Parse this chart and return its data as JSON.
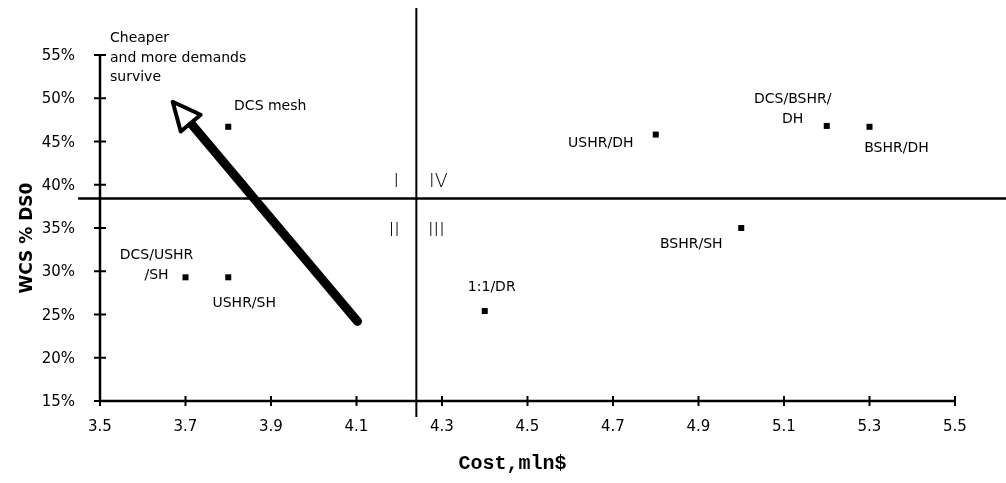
{
  "chart_data": {
    "type": "scatter",
    "xlabel": "Cost,mln$",
    "ylabel": "WCS % DS0",
    "x": [
      3.8,
      3.7,
      3.8,
      4.4,
      4.8,
      5.0,
      5.2,
      5.3
    ],
    "values": [
      46.7,
      29.3,
      29.3,
      25.4,
      45.8,
      35,
      46.8,
      46.7
    ],
    "color": "#000000",
    "marker": "square",
    "xlim": [
      3.5,
      5.5
    ],
    "xticks": [
      3.5,
      3.7,
      3.9,
      4.1,
      4.3,
      4.5,
      4.7,
      4.9,
      5.1,
      5.3,
      5.5
    ],
    "ylim": [
      15,
      55
    ],
    "yticks": [
      {
        "value": 15,
        "label": "15%"
      },
      {
        "value": 20,
        "label": "20%"
      },
      {
        "value": 25,
        "label": "25%"
      },
      {
        "value": 30,
        "label": "30%"
      },
      {
        "value": 35,
        "label": "35%"
      },
      {
        "value": 40,
        "label": "40%"
      },
      {
        "value": 45,
        "label": "45%"
      },
      {
        "value": 50,
        "label": "50%"
      },
      {
        "value": 55,
        "label": "55%"
      }
    ],
    "ref_lines": [
      {
        "axis": "x",
        "value": 4.24,
        "color": "#000000"
      },
      {
        "axis": "y",
        "value": 38.4,
        "color": "#000000"
      }
    ],
    "grid": false,
    "annotations": [
      "Cheaper\nand more demands\nsurvive",
      {
        "text": "DCS mesh",
        "x": 3.8,
        "y": 46.7
      },
      {
        "text": "DCS/USHR\n/SH",
        "x": 3.7,
        "y": 29.3
      },
      {
        "text": "USHR/SH",
        "x": 3.8,
        "y": 29.3
      },
      {
        "text": "1:1/DR",
        "x": 4.4,
        "y": 25.4
      },
      {
        "text": "USHR/DH",
        "x": 4.8,
        "y": 45.8
      },
      {
        "text": "BSHR/SH",
        "x": 5.0,
        "y": 35
      },
      {
        "text": "DCS/BSHR/\nDH",
        "x": 5.2,
        "y": 46.8
      },
      {
        "text": "BSHR/DH",
        "x": 5.3,
        "y": 46.7
      },
      "I",
      "IV",
      "II",
      "III"
    ]
  }
}
